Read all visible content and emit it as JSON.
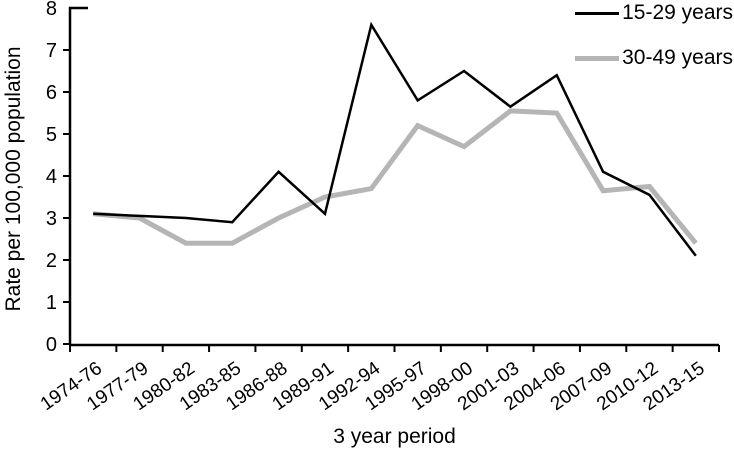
{
  "chart_data": {
    "type": "line",
    "title": "",
    "xlabel": "3 year period",
    "ylabel": "Rate per 100,000 population",
    "ylim": [
      0,
      8
    ],
    "yticks": [
      0,
      1,
      2,
      3,
      4,
      5,
      6,
      7,
      8
    ],
    "grid": false,
    "legend_position": "top-right",
    "background_color": "#ffffff",
    "axis_color": "#000000",
    "categories": [
      "1974-76",
      "1977-79",
      "1980-82",
      "1983-85",
      "1986-88",
      "1989-91",
      "1992-94",
      "1995-97",
      "1998-00",
      "2001-03",
      "2004-06",
      "2007-09",
      "2010-12",
      "2013-15"
    ],
    "series": [
      {
        "name": "15-29 years",
        "color": "#000000",
        "line_width": 2.5,
        "values": [
          3.1,
          3.05,
          3.0,
          2.9,
          4.1,
          3.1,
          7.6,
          5.8,
          6.5,
          5.65,
          6.4,
          4.1,
          3.55,
          2.1
        ]
      },
      {
        "name": "30-49 years",
        "color": "#b5b5b5",
        "line_width": 5,
        "values": [
          3.1,
          3.0,
          2.4,
          2.4,
          3.0,
          3.5,
          3.7,
          5.2,
          4.7,
          5.55,
          5.5,
          3.65,
          3.75,
          2.4
        ]
      }
    ]
  }
}
